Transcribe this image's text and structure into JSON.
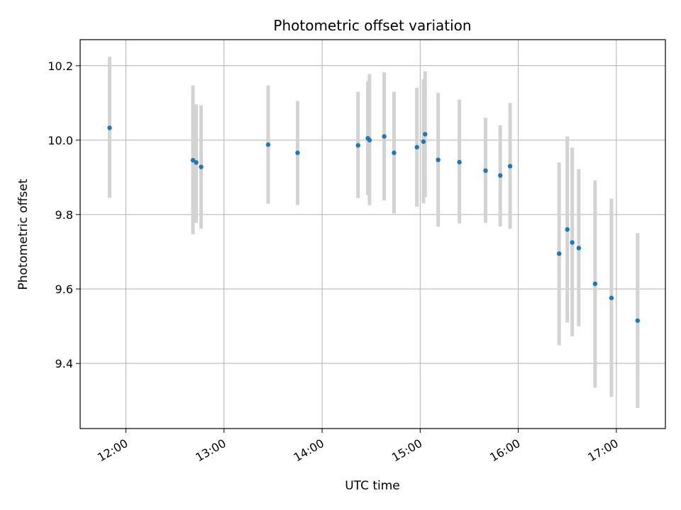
{
  "chart_data": {
    "type": "scatter",
    "title": "Photometric offset variation",
    "xlabel": "UTC time",
    "ylabel": "Photometric offset",
    "xlim": [
      "11:32",
      "17:30"
    ],
    "ylim": [
      9.225,
      10.27
    ],
    "grid": true,
    "xticks": [
      "12:00",
      "13:00",
      "14:00",
      "15:00",
      "16:00",
      "17:00"
    ],
    "yticks": [
      9.4,
      9.6,
      9.8,
      10.0,
      10.2
    ],
    "colors": {
      "point": "#1f77b4",
      "errorbar": "#d3d3d3",
      "grid": "#b0b0b0"
    },
    "points": [
      {
        "x": "11:50",
        "y": 10.033,
        "low": 9.845,
        "high": 10.224
      },
      {
        "x": "12:41",
        "y": 9.946,
        "low": 9.747,
        "high": 10.147
      },
      {
        "x": "12:43",
        "y": 9.94,
        "low": 9.778,
        "high": 10.096
      },
      {
        "x": "12:46",
        "y": 9.928,
        "low": 9.762,
        "high": 10.094
      },
      {
        "x": "13:27",
        "y": 9.988,
        "low": 9.829,
        "high": 10.147
      },
      {
        "x": "13:45",
        "y": 9.966,
        "low": 9.826,
        "high": 10.105
      },
      {
        "x": "14:22",
        "y": 9.986,
        "low": 9.844,
        "high": 10.13
      },
      {
        "x": "14:28",
        "y": 10.005,
        "low": 9.852,
        "high": 10.158
      },
      {
        "x": "14:29",
        "y": 10.0,
        "low": 9.825,
        "high": 10.178
      },
      {
        "x": "14:38",
        "y": 10.01,
        "low": 9.838,
        "high": 10.182
      },
      {
        "x": "14:44",
        "y": 9.966,
        "low": 9.803,
        "high": 10.13
      },
      {
        "x": "14:58",
        "y": 9.981,
        "low": 9.821,
        "high": 10.141
      },
      {
        "x": "15:02",
        "y": 9.996,
        "low": 9.83,
        "high": 10.164
      },
      {
        "x": "15:03",
        "y": 10.016,
        "low": 9.847,
        "high": 10.185
      },
      {
        "x": "15:11",
        "y": 9.947,
        "low": 9.767,
        "high": 10.127
      },
      {
        "x": "15:24",
        "y": 9.941,
        "low": 9.776,
        "high": 10.109
      },
      {
        "x": "15:40",
        "y": 9.918,
        "low": 9.778,
        "high": 10.06
      },
      {
        "x": "15:49",
        "y": 9.905,
        "low": 9.768,
        "high": 10.04
      },
      {
        "x": "15:55",
        "y": 9.93,
        "low": 9.762,
        "high": 10.1
      },
      {
        "x": "16:25",
        "y": 9.695,
        "low": 9.449,
        "high": 9.94
      },
      {
        "x": "16:30",
        "y": 9.76,
        "low": 9.51,
        "high": 10.01
      },
      {
        "x": "16:33",
        "y": 9.725,
        "low": 9.473,
        "high": 9.98
      },
      {
        "x": "16:37",
        "y": 9.71,
        "low": 9.5,
        "high": 9.922
      },
      {
        "x": "16:47",
        "y": 9.614,
        "low": 9.335,
        "high": 9.892
      },
      {
        "x": "16:57",
        "y": 9.576,
        "low": 9.31,
        "high": 9.843
      },
      {
        "x": "17:13",
        "y": 9.515,
        "low": 9.28,
        "high": 9.75
      }
    ]
  }
}
